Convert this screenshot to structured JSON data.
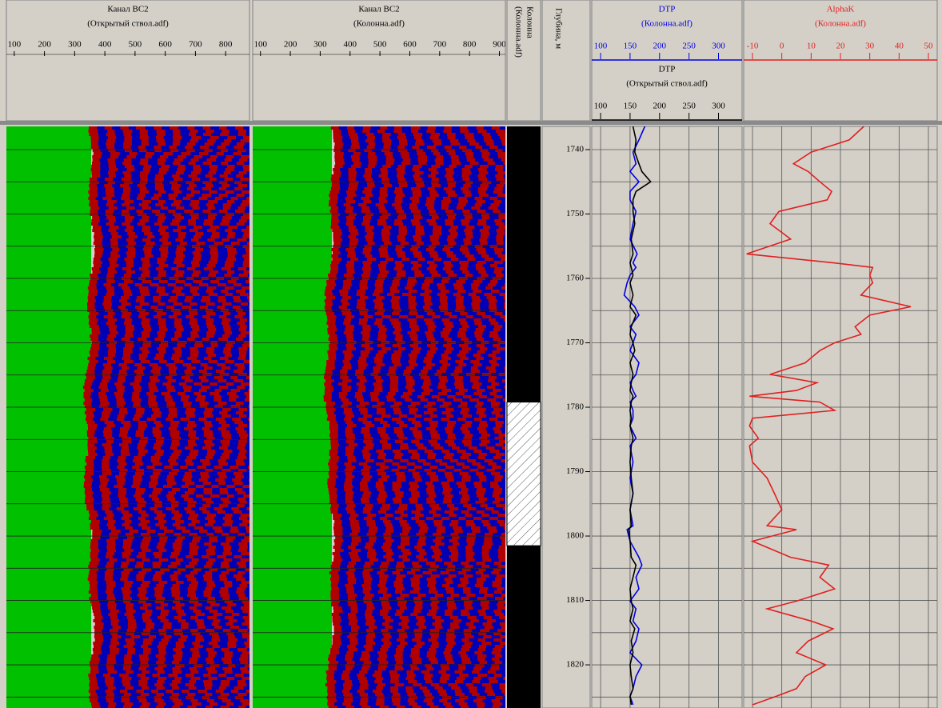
{
  "chart_data": [
    {
      "type": "vdl",
      "title": "Канал ВС2",
      "subtitle": "(Открытый ствол.adf)",
      "xlim": [
        74,
        879
      ],
      "xticks": [
        100,
        200,
        300,
        400,
        500,
        600,
        700,
        800
      ],
      "ylim": [
        1736.4,
        1826.7
      ],
      "ygrid": [
        1740,
        1745,
        1750,
        1755,
        1760,
        1765,
        1770,
        1775,
        1780,
        1785,
        1790,
        1795,
        1800,
        1805,
        1810,
        1815,
        1820,
        1825
      ],
      "arrival": 355,
      "period": 55,
      "colors": [
        "#00c000",
        "#b00000",
        "#0000b4"
      ]
    },
    {
      "type": "vdl",
      "title": "Канал ВС2",
      "subtitle": "(Колонна.adf)",
      "xlim": [
        74,
        920
      ],
      "xticks": [
        100,
        200,
        300,
        400,
        500,
        600,
        700,
        800,
        900
      ],
      "ylim": [
        1736.4,
        1826.7
      ],
      "ygrid": [
        1740,
        1745,
        1750,
        1755,
        1760,
        1765,
        1770,
        1775,
        1780,
        1785,
        1790,
        1795,
        1800,
        1805,
        1810,
        1815,
        1820,
        1825
      ],
      "arrival": 339,
      "period": 55,
      "colors": [
        "#00c000",
        "#b00000",
        "#0000b4"
      ]
    },
    {
      "type": "column",
      "title": "Колонна",
      "subtitle": "(Колонна.adf)",
      "ylim": [
        1736.4,
        1826.7
      ],
      "hatch_top": 1779.2,
      "hatch_bottom": 1801.5
    },
    {
      "type": "depth",
      "title": "Глубина, м",
      "ylim": [
        1736.4,
        1826.7
      ],
      "yticks": [
        1740,
        1750,
        1760,
        1770,
        1780,
        1790,
        1800,
        1810,
        1820
      ]
    },
    {
      "type": "log",
      "xlim": [
        85,
        340
      ],
      "xticks": [
        100,
        150,
        200,
        250,
        300
      ],
      "ylim": [
        1736.4,
        1826.7
      ],
      "ygrid": [
        1740,
        1745,
        1750,
        1755,
        1760,
        1765,
        1770,
        1775,
        1780,
        1785,
        1790,
        1795,
        1800,
        1805,
        1810,
        1815,
        1820,
        1825
      ],
      "depths": [
        1736.4,
        1738.5,
        1740.4,
        1742.2,
        1743.4,
        1745.0,
        1746.5,
        1747.8,
        1749.6,
        1751.5,
        1753.9,
        1756.2,
        1757.6,
        1758.3,
        1759.5,
        1760.7,
        1762.6,
        1764.4,
        1765.7,
        1767.5,
        1768.7,
        1770.0,
        1771.2,
        1773.1,
        1774.9,
        1776.2,
        1777.4,
        1778.3,
        1779.2,
        1780.5,
        1781.7,
        1782.9,
        1784.8,
        1786.0,
        1788.5,
        1791.0,
        1793.4,
        1795.9,
        1798.4,
        1799.0,
        1800.8,
        1803.3,
        1804.5,
        1806.4,
        1808.2,
        1810.1,
        1811.3,
        1813.2,
        1814.4,
        1816.3,
        1818.1,
        1820.0,
        1821.8,
        1823.7,
        1824.9,
        1826.2
      ],
      "series": [
        {
          "name": "DTP",
          "source": "(Колонна.adf)",
          "color": "#0000e0",
          "values": [
            175,
            165,
            155,
            160,
            150,
            165,
            150,
            150,
            160,
            155,
            150,
            162,
            155,
            160,
            150,
            145,
            140,
            158,
            165,
            150,
            160,
            155,
            150,
            165,
            160,
            150,
            155,
            160,
            150,
            155,
            155,
            150,
            160,
            150,
            155,
            150,
            155,
            150,
            155,
            145,
            150,
            165,
            170,
            160,
            165,
            150,
            160,
            155,
            165,
            160,
            150,
            170,
            160,
            155,
            150,
            155
          ]
        },
        {
          "name": "DTP",
          "source": "(Открытый ствол.adf)",
          "color": "#000000",
          "values": [
            155,
            160,
            158,
            165,
            170,
            185,
            160,
            155,
            155,
            158,
            152,
            155,
            150,
            152,
            155,
            150,
            155,
            150,
            160,
            152,
            150,
            155,
            158,
            150,
            155,
            152,
            150,
            155,
            152,
            150,
            152,
            150,
            155,
            152,
            150,
            152,
            155,
            150,
            152,
            148,
            150,
            152,
            160,
            155,
            150,
            152,
            155,
            150,
            158,
            152,
            155,
            150,
            152,
            155,
            150,
            152
          ]
        }
      ]
    },
    {
      "type": "log",
      "xlim": [
        -13,
        53
      ],
      "xticks": [
        -10,
        0,
        10,
        20,
        30,
        40,
        50
      ],
      "ylim": [
        1736.4,
        1826.7
      ],
      "ygrid": [
        1740,
        1745,
        1750,
        1755,
        1760,
        1765,
        1770,
        1775,
        1780,
        1785,
        1790,
        1795,
        1800,
        1805,
        1810,
        1815,
        1820,
        1825
      ],
      "depths": [
        1736.4,
        1738.5,
        1740.4,
        1742.2,
        1743.4,
        1745.0,
        1746.5,
        1747.8,
        1749.6,
        1751.5,
        1753.9,
        1756.2,
        1757.6,
        1758.3,
        1759.5,
        1760.7,
        1762.6,
        1764.4,
        1765.7,
        1767.5,
        1768.7,
        1770.0,
        1771.2,
        1773.1,
        1774.9,
        1776.2,
        1777.4,
        1778.3,
        1779.2,
        1780.5,
        1781.7,
        1782.9,
        1784.8,
        1786.0,
        1788.5,
        1791.0,
        1793.4,
        1795.9,
        1798.4,
        1799.0,
        1800.8,
        1803.3,
        1804.5,
        1806.4,
        1808.2,
        1810.1,
        1811.3,
        1813.2,
        1814.4,
        1816.3,
        1818.1,
        1820.0,
        1821.8,
        1823.7,
        1824.9,
        1826.2
      ],
      "series": [
        {
          "name": "AlphaK",
          "source": "(Колонна.adf)",
          "color": "#e02020",
          "values": [
            28,
            23,
            10,
            4,
            9,
            13,
            17,
            15.5,
            -1,
            -4,
            3,
            -12,
            18,
            31,
            30,
            31,
            27,
            44,
            30,
            25,
            27,
            18,
            13,
            8,
            -4,
            12,
            5,
            -11,
            13,
            18,
            -10,
            -11,
            -8,
            -11,
            -10,
            -5,
            -2.5,
            0,
            -5,
            5,
            -10,
            3,
            16,
            13,
            18,
            5,
            -5,
            10,
            17.5,
            9,
            5,
            15,
            8,
            5,
            -2,
            -10
          ]
        }
      ]
    }
  ]
}
